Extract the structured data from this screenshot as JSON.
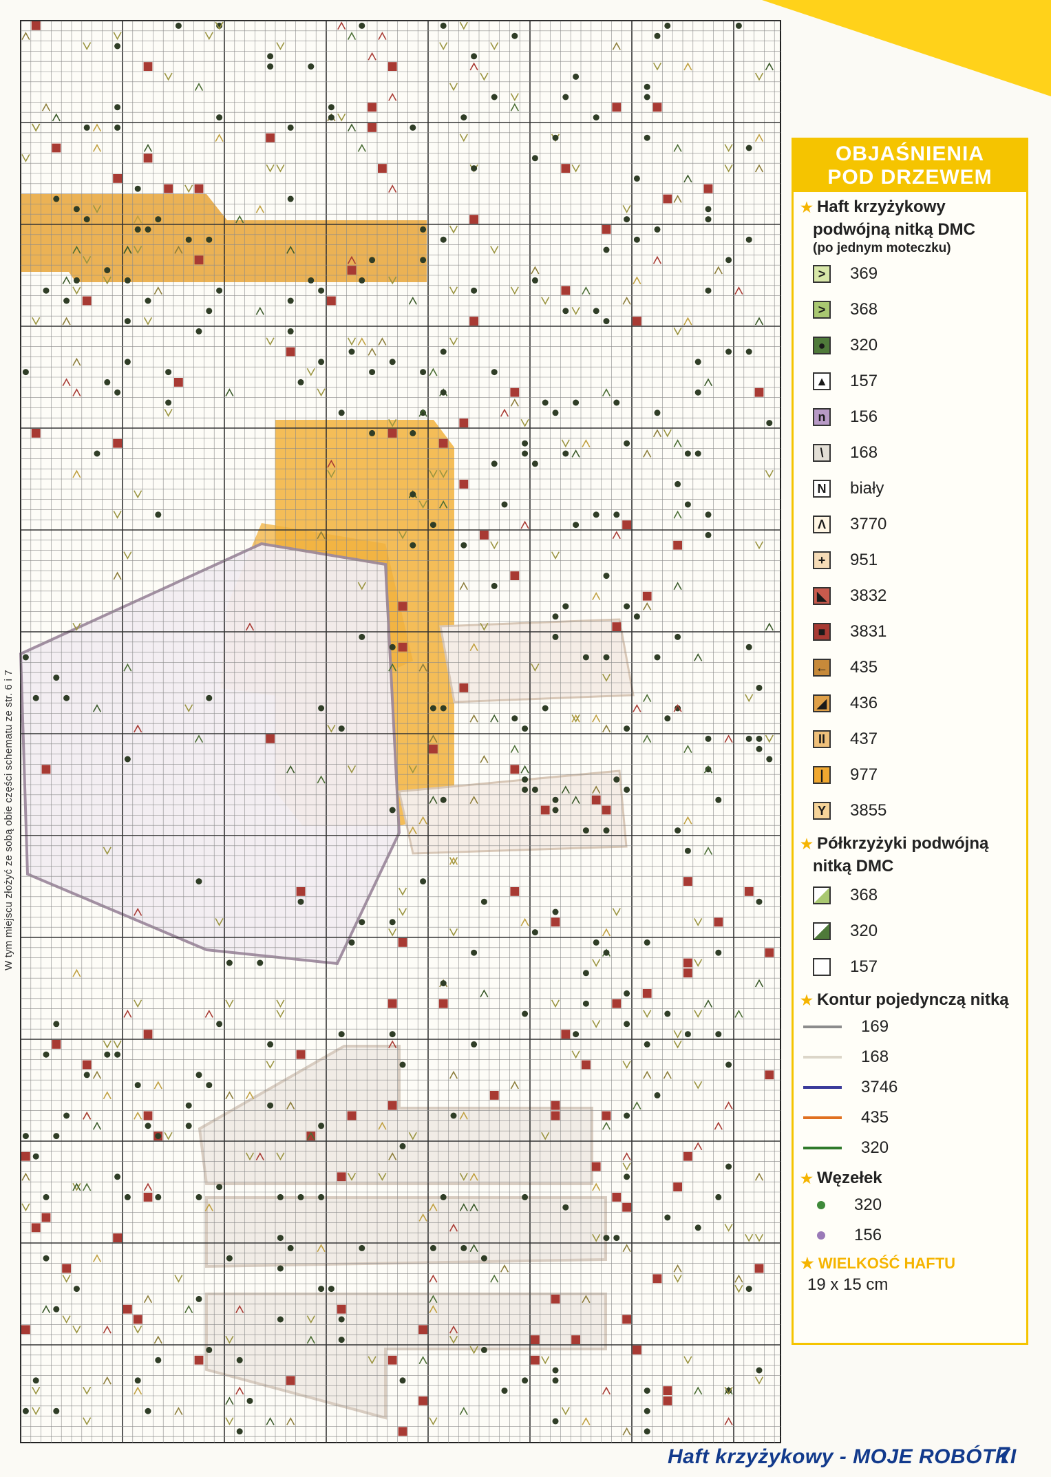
{
  "side_note": "W tym miejscu złożyć ze sobą obie części schematu ze str. 6 i 7",
  "legend": {
    "title_line1": "OBJAŚNIENIA",
    "title_line2": "POD DRZEWEM",
    "cross_stitch": {
      "heading_line1": "Haft krzyżykowy",
      "heading_line2": "podwójną nitką DMC",
      "note": "(po jednym moteczku)",
      "items": [
        {
          "code": "369",
          "symbol": ">",
          "color": "#d8e7a8"
        },
        {
          "code": "368",
          "symbol": ">",
          "color": "#a9c871"
        },
        {
          "code": "320",
          "symbol": "●",
          "color": "#4f7a3a"
        },
        {
          "code": "157",
          "symbol": "▲",
          "color": "#ffffff"
        },
        {
          "code": "156",
          "symbol": "n",
          "color": "#b89ac6"
        },
        {
          "code": "168",
          "symbol": "\\",
          "color": "#e3dfd6"
        },
        {
          "code": "biały",
          "symbol": "N",
          "color": "#ffffff"
        },
        {
          "code": "3770",
          "symbol": "Λ",
          "color": "#fff6e4"
        },
        {
          "code": "951",
          "symbol": "+",
          "color": "#f6dcb7"
        },
        {
          "code": "3832",
          "symbol": "◣",
          "color": "#c95a4d"
        },
        {
          "code": "3831",
          "symbol": "■",
          "color": "#a83a33"
        },
        {
          "code": "435",
          "symbol": "←",
          "color": "#c78a3a"
        },
        {
          "code": "436",
          "symbol": "◢",
          "color": "#dfa048"
        },
        {
          "code": "437",
          "symbol": "II",
          "color": "#efc07a"
        },
        {
          "code": "977",
          "symbol": "|",
          "color": "#f0a830"
        },
        {
          "code": "3855",
          "symbol": "Y",
          "color": "#f6d499"
        }
      ]
    },
    "half_stitch": {
      "heading_line1": "Półkrzyżyki podwójną",
      "heading_line2": "nitką DMC",
      "items": [
        {
          "code": "368",
          "color": "#a9c871"
        },
        {
          "code": "320",
          "color": "#4f7a3a"
        },
        {
          "code": "157",
          "color": "#ffffff"
        }
      ]
    },
    "outline": {
      "heading": "Kontur pojedynczą nitką",
      "items": [
        {
          "code": "169",
          "color": "#8c8c8c"
        },
        {
          "code": "168",
          "color": "#dcd6c9"
        },
        {
          "code": "3746",
          "color": "#3a3a9a"
        },
        {
          "code": "435",
          "color": "#e07020"
        },
        {
          "code": "320",
          "color": "#2f7a2a"
        }
      ]
    },
    "knot": {
      "heading": "Węzełek",
      "items": [
        {
          "code": "320",
          "color": "#3f8a3a"
        },
        {
          "code": "156",
          "color": "#9a7ab8"
        }
      ]
    },
    "size": {
      "heading": "WIELKOŚĆ HAFTU",
      "value": "19 x 15 cm"
    }
  },
  "footer": {
    "text": "Haft krzyżykowy - MOJE ROBÓTKI",
    "page": "7"
  }
}
